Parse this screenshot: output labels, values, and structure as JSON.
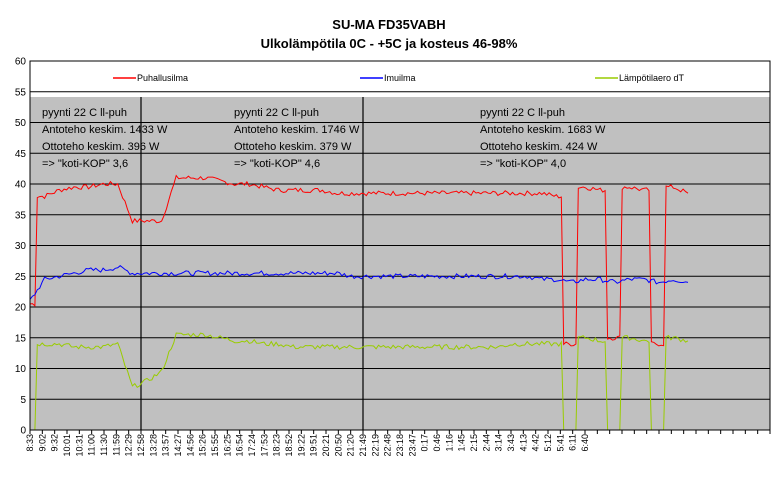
{
  "chart_data": {
    "type": "line",
    "title": "SU-MA FD35VABH",
    "subtitle": "Ulkolämpötila 0C - +5C ja kosteus 46-98%",
    "ylim": [
      0,
      60
    ],
    "yticks": [
      0,
      5,
      10,
      15,
      20,
      25,
      30,
      35,
      40,
      45,
      50,
      55,
      60
    ],
    "grid": true,
    "legend_position": "top",
    "x_tick_labels": [
      "8:33",
      "9:02",
      "9:32",
      "10:01",
      "10:31",
      "11:00",
      "11:30",
      "11:59",
      "12:29",
      "12:58",
      "13:28",
      "13:57",
      "14:27",
      "14:56",
      "15:26",
      "15:55",
      "16:25",
      "16:54",
      "17:24",
      "17:53",
      "18:23",
      "18:52",
      "19:22",
      "19:51",
      "20:21",
      "20:50",
      "21:20",
      "21:49",
      "22:19",
      "22:48",
      "23:18",
      "23:47",
      "0:17",
      "0:46",
      "1:16",
      "1:45",
      "2:15",
      "2:44",
      "3:14",
      "3:43",
      "4:13",
      "4:42",
      "5:12",
      "5:41",
      "6:11",
      "6:40"
    ],
    "x_tick_count": 60,
    "x": [
      0,
      1,
      2,
      3,
      4,
      5,
      6,
      7,
      8,
      9,
      10,
      11,
      12,
      13,
      14,
      15,
      16,
      17,
      18,
      19,
      20,
      21,
      22,
      23,
      24,
      25,
      26,
      27,
      28,
      29,
      30,
      31,
      32,
      33,
      34,
      35,
      36,
      37,
      38,
      39,
      40,
      41,
      42,
      43,
      44,
      45
    ],
    "series": [
      {
        "name": "Puhallusilma",
        "color": "#ff0000",
        "values": [
          20.5,
          38,
          39,
          39.5,
          39.5,
          40,
          40,
          34,
          34,
          34,
          41,
          41,
          41,
          40.5,
          40,
          40,
          39.5,
          39,
          39,
          39,
          39,
          38.5,
          38.5,
          38.5,
          38.5,
          38.5,
          38.5,
          38.5,
          38.5,
          38.5,
          38.5,
          38.5,
          38.5,
          38.5,
          38.5,
          38.5,
          38,
          14,
          39.5,
          39,
          15,
          39.5,
          39,
          14,
          39.5,
          38.5
        ]
      },
      {
        "name": "Imuilma",
        "color": "#0000ff",
        "values": [
          21,
          24.5,
          25,
          25.5,
          26,
          26,
          26.5,
          25.5,
          25.5,
          25.5,
          25.5,
          25.5,
          25.5,
          25.5,
          25.5,
          25.5,
          25.5,
          25.5,
          25.5,
          25.5,
          25.5,
          25.5,
          25,
          25,
          25,
          25,
          25,
          25,
          25,
          25,
          25,
          25,
          25,
          25,
          25,
          24.5,
          24.5,
          24,
          24.5,
          24.5,
          24,
          24.5,
          24.5,
          24,
          24.5,
          24
        ]
      },
      {
        "name": "Lämpötilaero dT",
        "color": "#99cc00",
        "values": [
          0,
          14,
          14,
          13.5,
          13.5,
          13.5,
          14,
          7,
          8,
          9.5,
          15.5,
          15.5,
          15.5,
          15,
          14.5,
          14.5,
          14,
          14,
          13.5,
          13.5,
          13.5,
          13.5,
          13.5,
          13.5,
          13.5,
          13.5,
          13.5,
          13.5,
          13.5,
          13.5,
          13.5,
          13.5,
          13.5,
          14,
          14,
          14,
          14,
          0,
          15,
          14.5,
          0,
          15,
          14.5,
          0,
          15,
          14.5
        ]
      }
    ],
    "vertical_lines_at": [
      "12:58",
      "21:49"
    ],
    "annotations": [
      [
        "pyynti 22 C ll-puh",
        "Antoteho keskim. 1433 W",
        "Ottoteho keskim. 396 W",
        "=> \"koti-KOP\" 3,6"
      ],
      [
        "pyynti 22 C ll-puh",
        "Antoteho keskim. 1746 W",
        "Ottoteho keskim. 379 W",
        "=> \"koti-KOP\" 4,6"
      ],
      [
        "pyynti 22 C ll-puh",
        "Antoteho keskim. 1683 W",
        "Ottoteho keskim. 424 W",
        "=> \"koti-KOP\" 4,0"
      ]
    ]
  }
}
